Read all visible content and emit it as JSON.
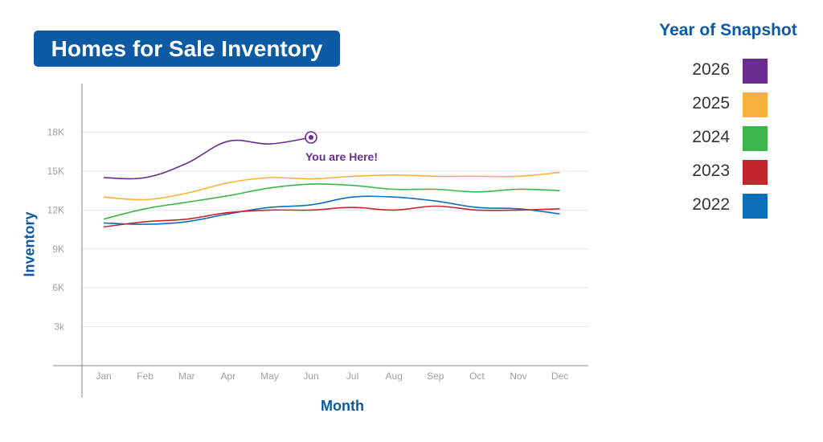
{
  "chart_data": {
    "type": "line",
    "title": "Homes for Sale Inventory",
    "xlabel": "Month",
    "ylabel": "Inventory",
    "categories": [
      "Jan",
      "Feb",
      "Mar",
      "Apr",
      "May",
      "Jun",
      "Jul",
      "Aug",
      "Sep",
      "Oct",
      "Nov",
      "Dec"
    ],
    "y_ticks": [
      3000,
      6000,
      9000,
      12000,
      15000,
      18000
    ],
    "y_tick_labels": [
      "3k",
      "6K",
      "9K",
      "12K",
      "15K",
      "18K"
    ],
    "ylim": [
      0,
      22000
    ],
    "grid": true,
    "legend_title": "Year of Snapshot",
    "legend_position": "right",
    "annotation": {
      "text": "You are Here!",
      "series": "2026",
      "category": "Jun"
    },
    "series": [
      {
        "name": "2026",
        "color": "#6a2c91",
        "values": [
          14500,
          14500,
          15600,
          17300,
          17100,
          17600,
          null,
          null,
          null,
          null,
          null,
          null
        ]
      },
      {
        "name": "2025",
        "color": "#f7b23b",
        "values": [
          13000,
          12800,
          13300,
          14100,
          14500,
          14400,
          14600,
          14700,
          14600,
          14600,
          14600,
          14900
        ]
      },
      {
        "name": "2024",
        "color": "#3cb54a",
        "values": [
          11300,
          12100,
          12600,
          13100,
          13700,
          14000,
          13900,
          13600,
          13600,
          13400,
          13600,
          13500
        ]
      },
      {
        "name": "2023",
        "color": "#c1272d",
        "values": [
          10700,
          11100,
          11300,
          11800,
          12000,
          12000,
          12200,
          12000,
          12300,
          12000,
          12000,
          12100
        ]
      },
      {
        "name": "2022",
        "color": "#0b6fba",
        "values": [
          11000,
          10900,
          11100,
          11700,
          12200,
          12400,
          13000,
          13000,
          12700,
          12200,
          12100,
          11700
        ]
      }
    ]
  }
}
